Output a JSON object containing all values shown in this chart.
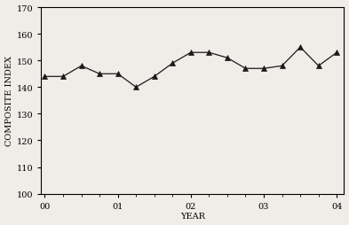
{
  "x_values": [
    0.0,
    0.25,
    0.5,
    0.75,
    1.0,
    1.25,
    1.5,
    1.75,
    2.0,
    2.25,
    2.5,
    2.75,
    3.0,
    3.25,
    3.5,
    3.75,
    4.0
  ],
  "y_values": [
    144,
    144,
    148,
    145,
    145,
    140,
    144,
    149,
    153,
    153,
    151,
    147,
    147,
    148,
    155,
    148,
    153
  ],
  "x_ticks": [
    0,
    1,
    2,
    3,
    4
  ],
  "x_tick_labels": [
    "00",
    "01",
    "02",
    "03",
    "04"
  ],
  "y_ticks": [
    100,
    110,
    120,
    130,
    140,
    150,
    160,
    170
  ],
  "ylim": [
    100,
    170
  ],
  "xlim": [
    -0.05,
    4.1
  ],
  "xlabel": "YEAR",
  "ylabel": "COMPOSITE INDEX",
  "line_color": "#1a1a1a",
  "marker": "^",
  "marker_size": 4,
  "marker_color": "#1a1a1a",
  "line_width": 0.9,
  "background_color": "#f0ece8",
  "plot_bg_color": "#f0ece8",
  "grid": false,
  "tick_fontsize": 7,
  "label_fontsize": 7
}
